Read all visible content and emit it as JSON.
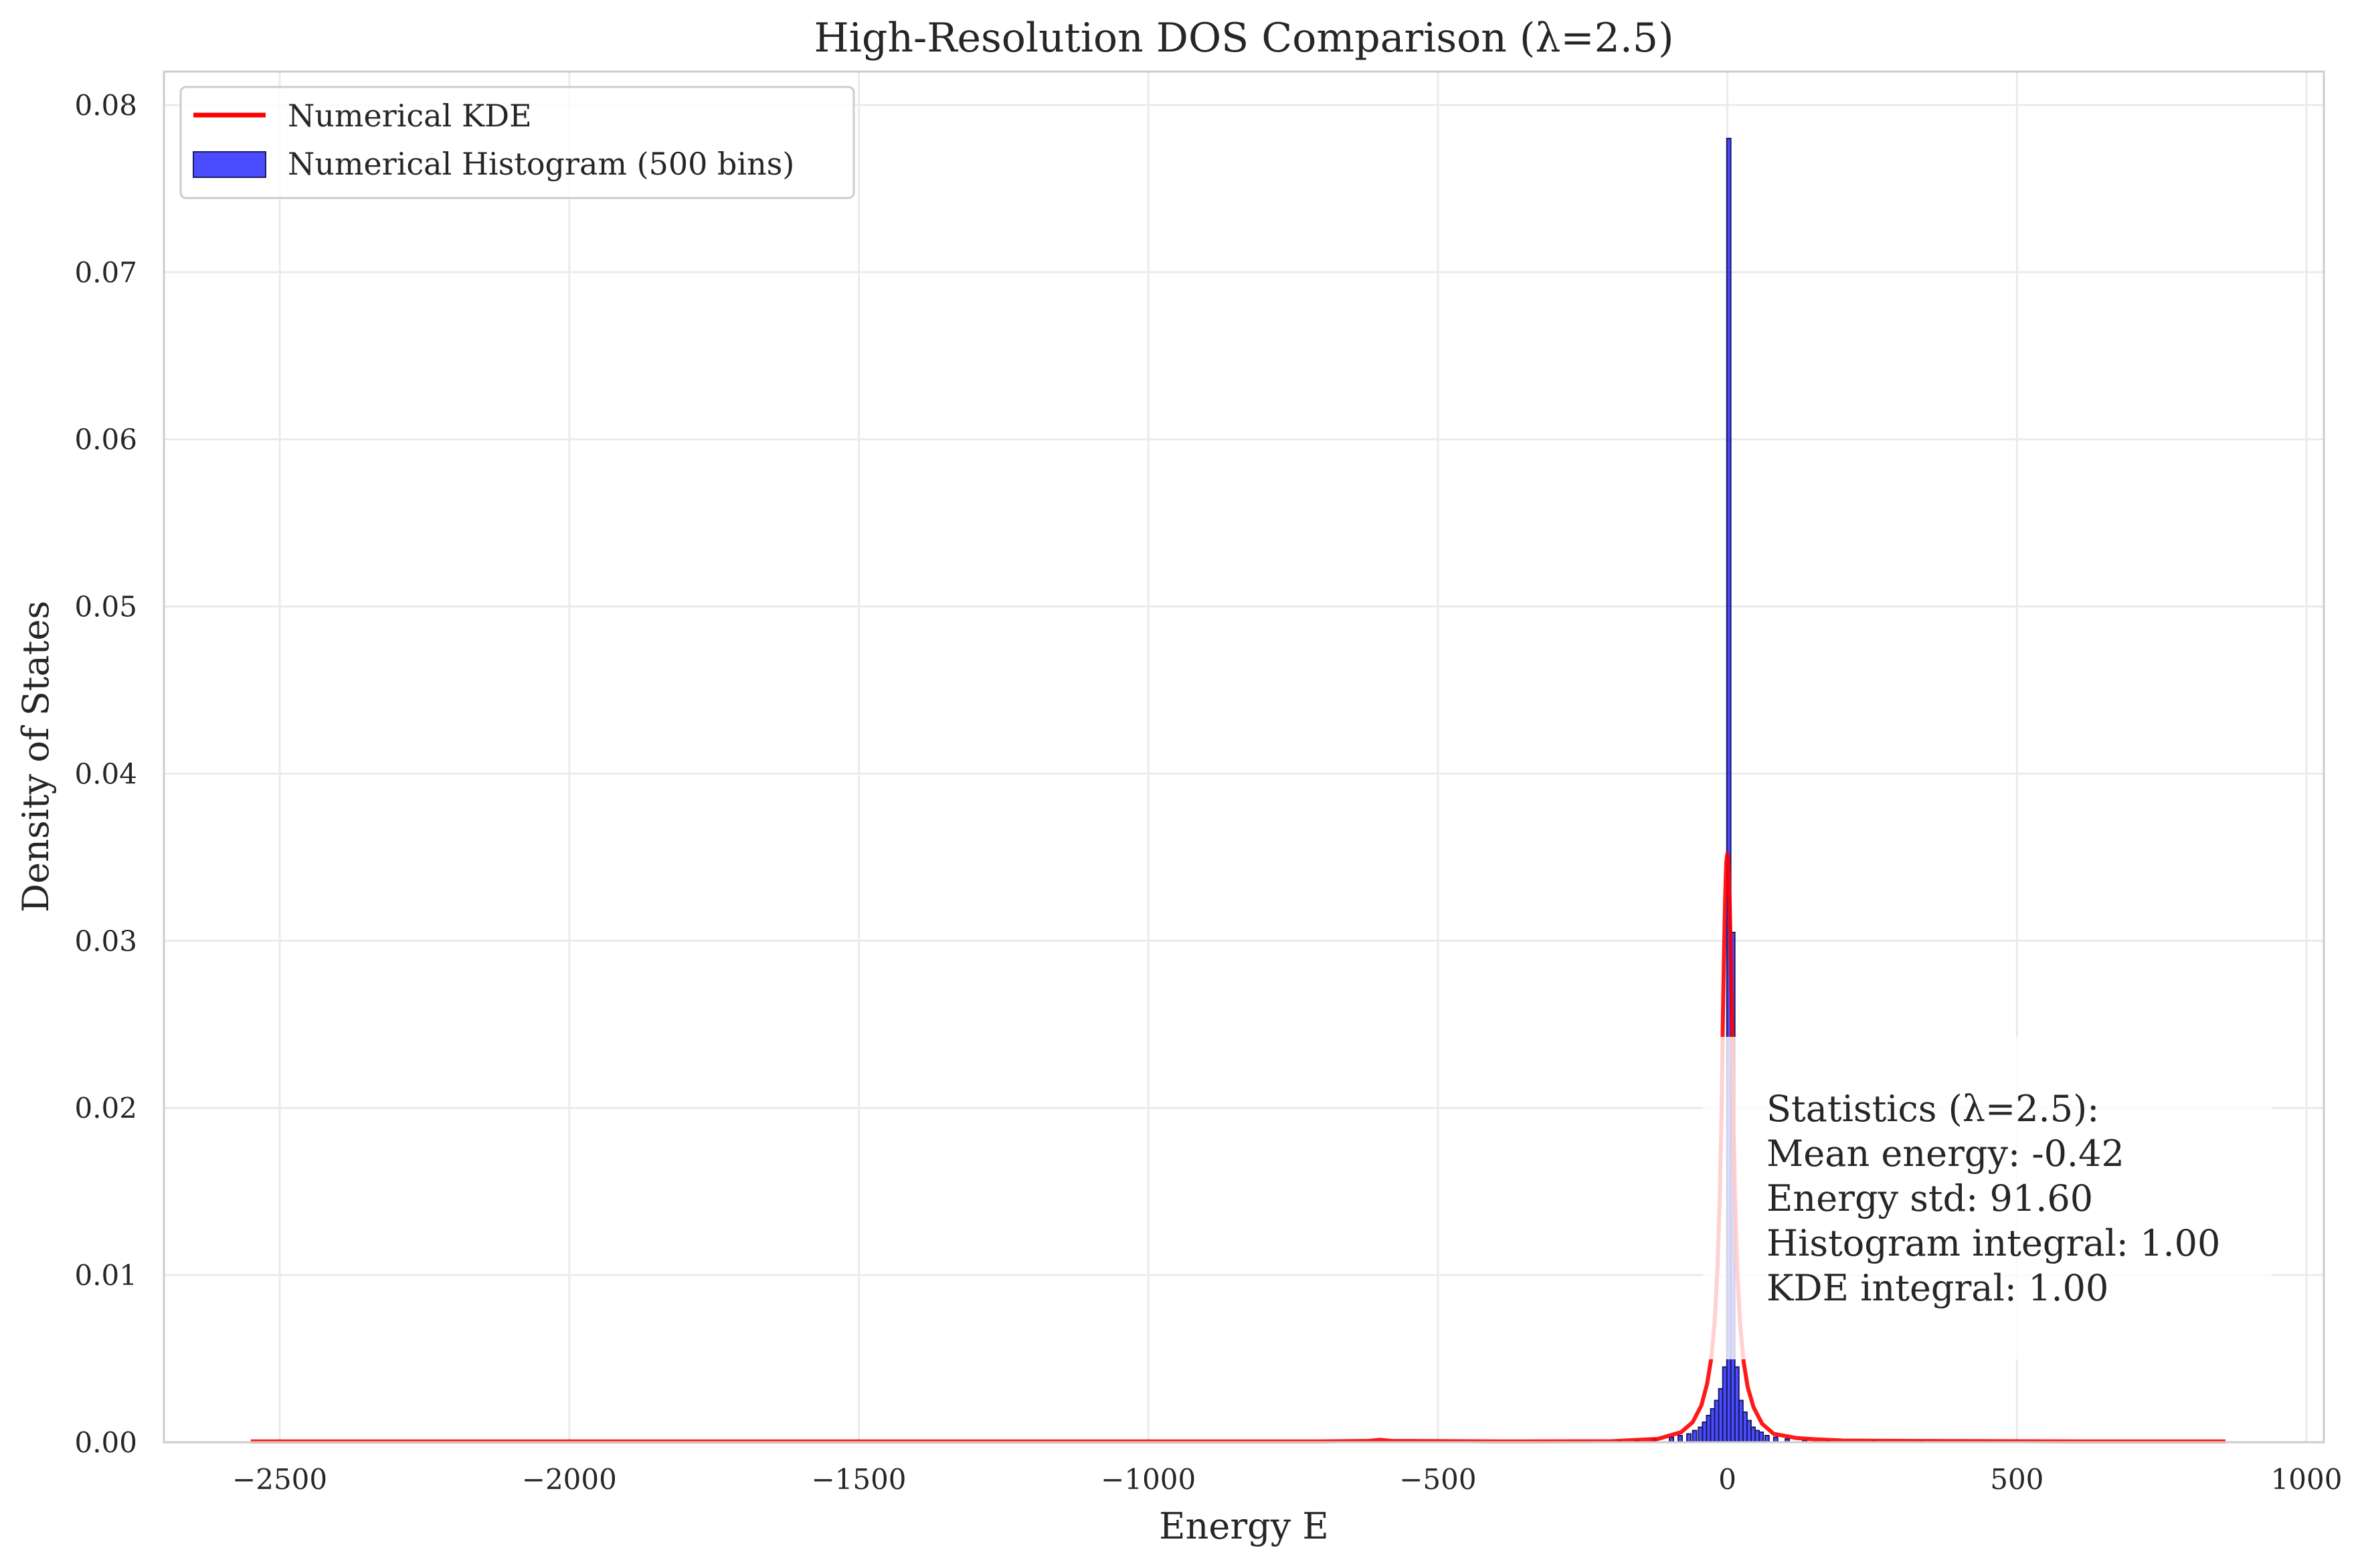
{
  "chart_data": {
    "type": "bar",
    "title": "High-Resolution DOS Comparison (λ=2.5)",
    "xlabel": "Energy E",
    "ylabel": "Density of States",
    "xlim": [
      -2700,
      1030
    ],
    "ylim": [
      0,
      0.082
    ],
    "x_ticks": [
      -2500,
      -2000,
      -1500,
      -1000,
      -500,
      0,
      500,
      1000
    ],
    "x_tick_labels": [
      "−2500",
      "−2000",
      "−1500",
      "−1000",
      "−500",
      "0",
      "500",
      "1000"
    ],
    "y_ticks": [
      0,
      0.01,
      0.02,
      0.03,
      0.04,
      0.05,
      0.06,
      0.07,
      0.08
    ],
    "y_tick_labels": [
      "0.00",
      "0.01",
      "0.02",
      "0.03",
      "0.04",
      "0.05",
      "0.06",
      "0.07",
      "0.08"
    ],
    "grid": true,
    "legend_position": "top-left",
    "series": [
      {
        "name": "Numerical KDE",
        "kind": "line",
        "color": "#ff0000",
        "x": [
          -2550,
          -2000,
          -1500,
          -1000,
          -700,
          -620,
          -600,
          -580,
          -400,
          -200,
          -120,
          -80,
          -60,
          -45,
          -35,
          -28,
          -22,
          -17,
          -13,
          -10,
          -8,
          -6,
          -4,
          -2,
          0,
          2,
          4,
          6,
          8,
          10,
          13,
          17,
          22,
          28,
          35,
          45,
          60,
          80,
          120,
          150,
          200,
          300,
          400,
          500,
          600,
          700,
          860
        ],
        "y": [
          5e-05,
          5e-05,
          5e-05,
          5e-05,
          5e-05,
          8e-05,
          0.00015,
          8e-05,
          5e-05,
          6e-05,
          0.0002,
          0.0006,
          0.0012,
          0.0022,
          0.0035,
          0.005,
          0.0072,
          0.0105,
          0.015,
          0.02,
          0.025,
          0.029,
          0.0325,
          0.0347,
          0.0352,
          0.0345,
          0.0322,
          0.0288,
          0.0248,
          0.02,
          0.0148,
          0.0103,
          0.007,
          0.0048,
          0.0033,
          0.0021,
          0.0011,
          0.0005,
          0.00025,
          0.00018,
          0.0001,
          8e-05,
          7e-05,
          6e-05,
          5e-05,
          5e-05,
          5e-05
        ]
      },
      {
        "name": "Numerical Histogram (500 bins)",
        "kind": "bar",
        "color": "#0000ff",
        "edge_color": "#1a1a66",
        "bin_width": 6.8,
        "x": [
          -190,
          -160,
          -130,
          -100,
          -85,
          -70,
          -60,
          -50,
          -43,
          -36,
          -29,
          -22,
          -15,
          -8,
          -1,
          6,
          13,
          20,
          27,
          34,
          41,
          48,
          55,
          65,
          80,
          100,
          130,
          170,
          250,
          330,
          450
        ],
        "y": [
          8e-05,
          0.00012,
          0.0002,
          0.0003,
          0.0004,
          0.0005,
          0.0007,
          0.0009,
          0.0012,
          0.0016,
          0.002,
          0.0025,
          0.0032,
          0.0045,
          0.078,
          0.0305,
          0.0045,
          0.0025,
          0.0018,
          0.0013,
          0.0009,
          0.0007,
          0.0006,
          0.0004,
          0.0003,
          0.0002,
          0.00012,
          9e-05,
          6e-05,
          5e-05,
          4e-05
        ]
      }
    ],
    "annotation": {
      "lines": [
        "Statistics (λ=2.5):",
        "Mean energy: -0.42",
        "Energy std: 91.60",
        "Histogram integral: 1.00",
        "KDE integral: 1.00"
      ]
    }
  }
}
